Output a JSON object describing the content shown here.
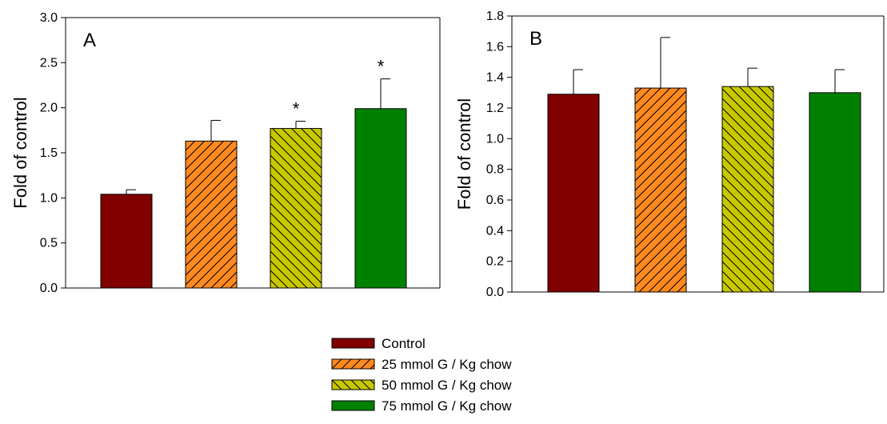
{
  "colors": {
    "control": "#800000",
    "g25": "#ff8a1f",
    "g50": "#c8c800",
    "g75": "#008000"
  },
  "legend": {
    "items": [
      {
        "label": "Control",
        "color": "#800000",
        "pattern": "none"
      },
      {
        "label": "25 mmol G / Kg chow",
        "color": "#ff8a1f",
        "pattern": "forward-hatch"
      },
      {
        "label": "50 mmol G / Kg chow",
        "color": "#c8c800",
        "pattern": "back-hatch"
      },
      {
        "label": "75 mmol G / Kg chow",
        "color": "#008000",
        "pattern": "none"
      }
    ],
    "placement": "bottom-center"
  },
  "chart_data": [
    {
      "type": "bar",
      "panel_label": "A",
      "categories": [
        "Control",
        "25 mmol G / Kg chow",
        "50 mmol G / Kg chow",
        "75 mmol G / Kg chow"
      ],
      "values": [
        1.04,
        1.63,
        1.77,
        1.99
      ],
      "errors": [
        0.05,
        0.23,
        0.08,
        0.33
      ],
      "significance": [
        "",
        "",
        "*",
        "*"
      ],
      "ylabel": "Fold of control",
      "xlabel": "",
      "ylim": [
        0,
        3.0
      ],
      "yticks": [
        "0.0",
        "0.5",
        "1.0",
        "1.5",
        "2.0",
        "2.5",
        "3.0"
      ],
      "grid": false
    },
    {
      "type": "bar",
      "panel_label": "B",
      "categories": [
        "Control",
        "25 mmol G / Kg chow",
        "50 mmol G / Kg chow",
        "75 mmol G / Kg chow"
      ],
      "values": [
        1.29,
        1.33,
        1.34,
        1.3
      ],
      "errors": [
        0.16,
        0.33,
        0.12,
        0.15
      ],
      "significance": [
        "",
        "",
        "",
        ""
      ],
      "ylabel": "Fold of control",
      "xlabel": "",
      "ylim": [
        0,
        1.8
      ],
      "yticks": [
        "0.0",
        "0.2",
        "0.4",
        "0.6",
        "0.8",
        "1.0",
        "1.2",
        "1.4",
        "1.6",
        "1.8"
      ],
      "grid": false
    }
  ]
}
